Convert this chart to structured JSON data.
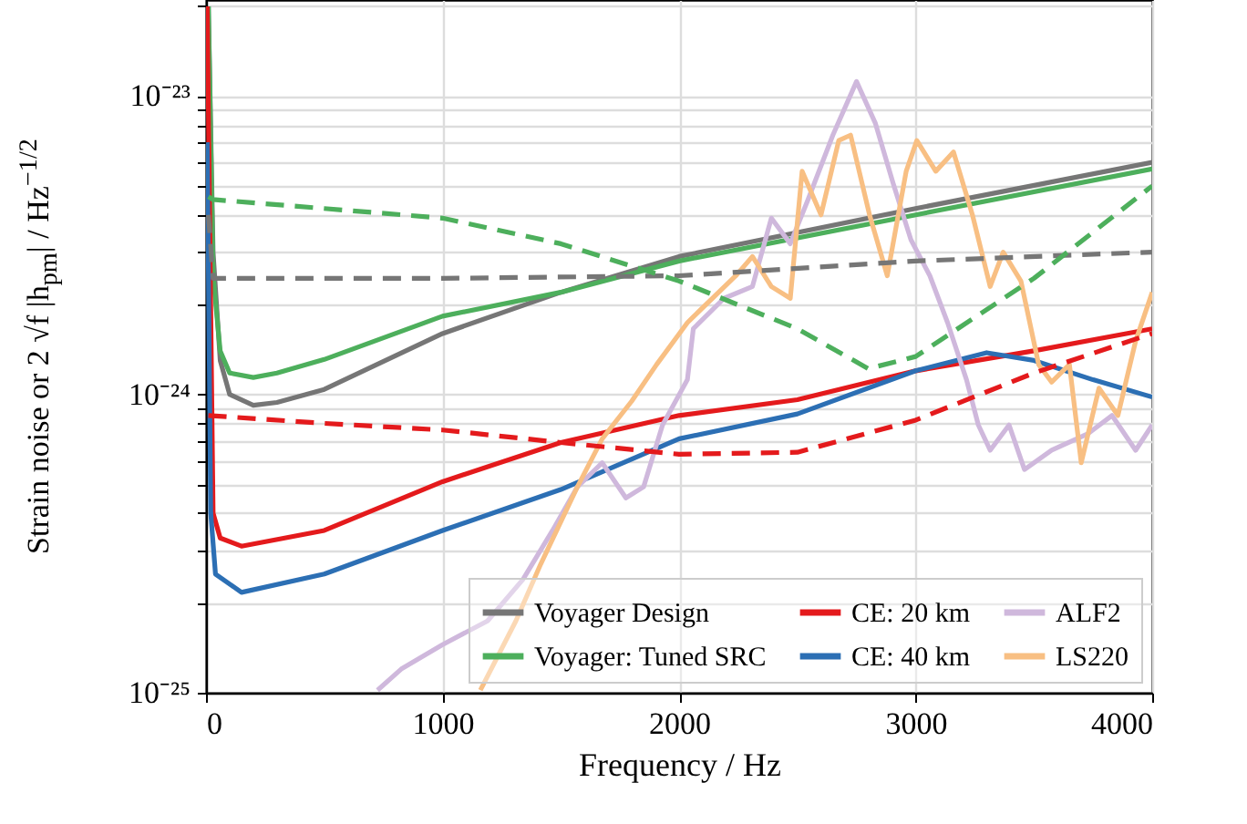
{
  "chart_data": {
    "type": "line",
    "xlabel": "Frequency / Hz",
    "ylabel": "Strain noise or 2 √f |h$_{pm}$| / Hz$^{−1/2}$",
    "log": "y",
    "grid": true,
    "legend": "bottom right",
    "xlim": [
      0,
      4000
    ],
    "xticks": [
      0,
      1000,
      2000,
      3000,
      4000
    ],
    "ylim": [
      1e-25,
      2.1e-23
    ],
    "yticks": [
      {
        "value": 1e-25,
        "label": "10⁻²⁵"
      },
      {
        "value": 2e-25,
        "label": null
      },
      {
        "value": 3e-25,
        "label": null
      },
      {
        "value": 4e-25,
        "label": null
      },
      {
        "value": 5e-25,
        "label": null
      },
      {
        "value": 6e-25,
        "label": null
      },
      {
        "value": 7e-25,
        "label": null
      },
      {
        "value": 8e-25,
        "label": null
      },
      {
        "value": 9e-25,
        "label": null
      },
      {
        "value": 1e-24,
        "label": "10⁻²⁴"
      },
      {
        "value": 2e-24,
        "label": null
      },
      {
        "value": 3e-24,
        "label": null
      },
      {
        "value": 4e-24,
        "label": null
      },
      {
        "value": 5e-24,
        "label": null
      },
      {
        "value": 6e-24,
        "label": null
      },
      {
        "value": 7e-24,
        "label": null
      },
      {
        "value": 8e-24,
        "label": null
      },
      {
        "value": 9e-24,
        "label": null
      },
      {
        "value": 1e-23,
        "label": "10⁻²³"
      },
      {
        "value": 2e-23,
        "label": null
      }
    ],
    "series": [
      {
        "name": "Voyager Design",
        "color": "#767676",
        "x": [
          10,
          30,
          60,
          100,
          200,
          300,
          500,
          1000,
          1500,
          2000,
          3000,
          4000
        ],
        "values": [
          2e-23,
          3e-24,
          1.3e-24,
          1e-24,
          9.2e-25,
          9.4e-25,
          1.04e-24,
          1.6e-24,
          2.2e-24,
          2.9e-24,
          4.2e-24,
          6e-24
        ]
      },
      {
        "name": "Voyager: Tuned SRC",
        "color": "#4daf5c",
        "x": [
          10,
          30,
          60,
          100,
          200,
          300,
          500,
          1000,
          1500,
          2000,
          3000,
          4000
        ],
        "values": [
          2e-23,
          2.5e-24,
          1.4e-24,
          1.18e-24,
          1.14e-24,
          1.18e-24,
          1.31e-24,
          1.83e-24,
          2.2e-24,
          2.8e-24,
          4e-24,
          5.7e-24
        ]
      },
      {
        "name": "CE: 20 km",
        "color": "#e41a1c",
        "x": [
          5,
          30,
          60,
          150,
          500,
          1000,
          1500,
          2000,
          2500,
          3000,
          3500,
          4000
        ],
        "values": [
          2e-23,
          4e-25,
          3.3e-25,
          3.1e-25,
          3.5e-25,
          5.1e-25,
          6.9e-25,
          8.5e-25,
          9.6e-25,
          1.2e-24,
          1.4e-24,
          1.66e-24
        ]
      },
      {
        "name": "CE: 40 km",
        "color": "#2c6fb4",
        "x": [
          5,
          20,
          40,
          150,
          500,
          1000,
          1500,
          2000,
          2500,
          3000,
          3300,
          3500,
          3750,
          4000
        ],
        "values": [
          7e-24,
          4e-25,
          2.5e-25,
          2.17e-25,
          2.5e-25,
          3.5e-25,
          4.8e-25,
          7.1e-25,
          8.6e-25,
          1.2e-24,
          1.38e-24,
          1.3e-24,
          1.12e-24,
          9.8e-25
        ]
      },
      {
        "name": "ALF2",
        "color": "#cfb8dc",
        "x": [
          725,
          825,
          1000,
          1190,
          1340,
          1465,
          1570,
          1675,
          1775,
          1850,
          1930,
          2035,
          2060,
          2190,
          2310,
          2390,
          2470,
          2545,
          2650,
          2750,
          2830,
          2905,
          2980,
          3060,
          3135,
          3215,
          3265,
          3315,
          3395,
          3460,
          3575,
          3730,
          3830,
          3930,
          4000
        ],
        "values": [
          1.02e-25,
          1.2e-25,
          1.45e-25,
          1.74e-25,
          2.4e-25,
          3.5e-25,
          4.9e-25,
          5.9e-25,
          4.5e-25,
          4.9e-25,
          7.9e-25,
          1.12e-24,
          1.66e-24,
          2.1e-24,
          2.3e-24,
          3.9e-24,
          3.2e-24,
          4.5e-24,
          7.4e-24,
          1.12e-23,
          8.1e-24,
          5.1e-24,
          3.3e-24,
          2.5e-24,
          1.74e-24,
          1.12e-24,
          7.9e-25,
          6.5e-25,
          7.9e-25,
          5.6e-25,
          6.5e-25,
          7.4e-25,
          8.5e-25,
          6.5e-25,
          7.9e-25
        ]
      },
      {
        "name": "LS220",
        "color": "#f8bf83",
        "x": [
          1160,
          1310,
          1415,
          1570,
          1675,
          1800,
          1905,
          2035,
          2060,
          2240,
          2310,
          2390,
          2470,
          2520,
          2600,
          2675,
          2725,
          2805,
          2880,
          2960,
          3005,
          3085,
          3160,
          3240,
          3315,
          3370,
          3445,
          3520,
          3575,
          3650,
          3700,
          3775,
          3855,
          3930,
          4000
        ],
        "values": [
          1.02e-25,
          1.74e-25,
          2.7e-25,
          4.9e-25,
          7.1e-25,
          9.5e-25,
          1.26e-24,
          1.74e-24,
          1.82e-24,
          2.5e-24,
          2.9e-24,
          2.3e-24,
          2.1e-24,
          5.6e-24,
          4e-24,
          7.1e-24,
          7.4e-24,
          4e-24,
          2.5e-24,
          5.6e-24,
          7.1e-24,
          5.6e-24,
          6.5e-24,
          4e-24,
          2.3e-24,
          3e-24,
          2.4e-24,
          1.26e-24,
          1.1e-24,
          1.26e-24,
          5.9e-25,
          1.05e-24,
          8.5e-25,
          1.51e-24,
          2.2e-24
        ]
      },
      {
        "color": "#767676",
        "line_style": "dashed",
        "x": [
          10,
          30,
          500,
          1000,
          2000,
          3000,
          4000
        ],
        "values": [
          4e-24,
          2.45e-24,
          2.45e-24,
          2.45e-24,
          2.5e-24,
          2.8e-24,
          3e-24
        ]
      },
      {
        "color": "#4daf5c",
        "line_style": "dashed",
        "x": [
          10,
          30,
          500,
          1000,
          1500,
          2000,
          2500,
          2800,
          3000,
          3500,
          4000
        ],
        "values": [
          4.6e-24,
          4.5e-24,
          4.2e-24,
          3.9e-24,
          3.2e-24,
          2.4e-24,
          1.66e-24,
          1.22e-24,
          1.34e-24,
          2.45e-24,
          5e-24
        ]
      },
      {
        "color": "#e41a1c",
        "line_style": "dashed",
        "x": [
          10,
          500,
          1000,
          1500,
          2000,
          2500,
          3000,
          3500,
          4000
        ],
        "values": [
          8.5e-25,
          8e-25,
          7.6e-25,
          6.9e-25,
          6.3e-25,
          6.4e-25,
          8.2e-25,
          1.18e-24,
          1.6e-24
        ]
      }
    ]
  }
}
